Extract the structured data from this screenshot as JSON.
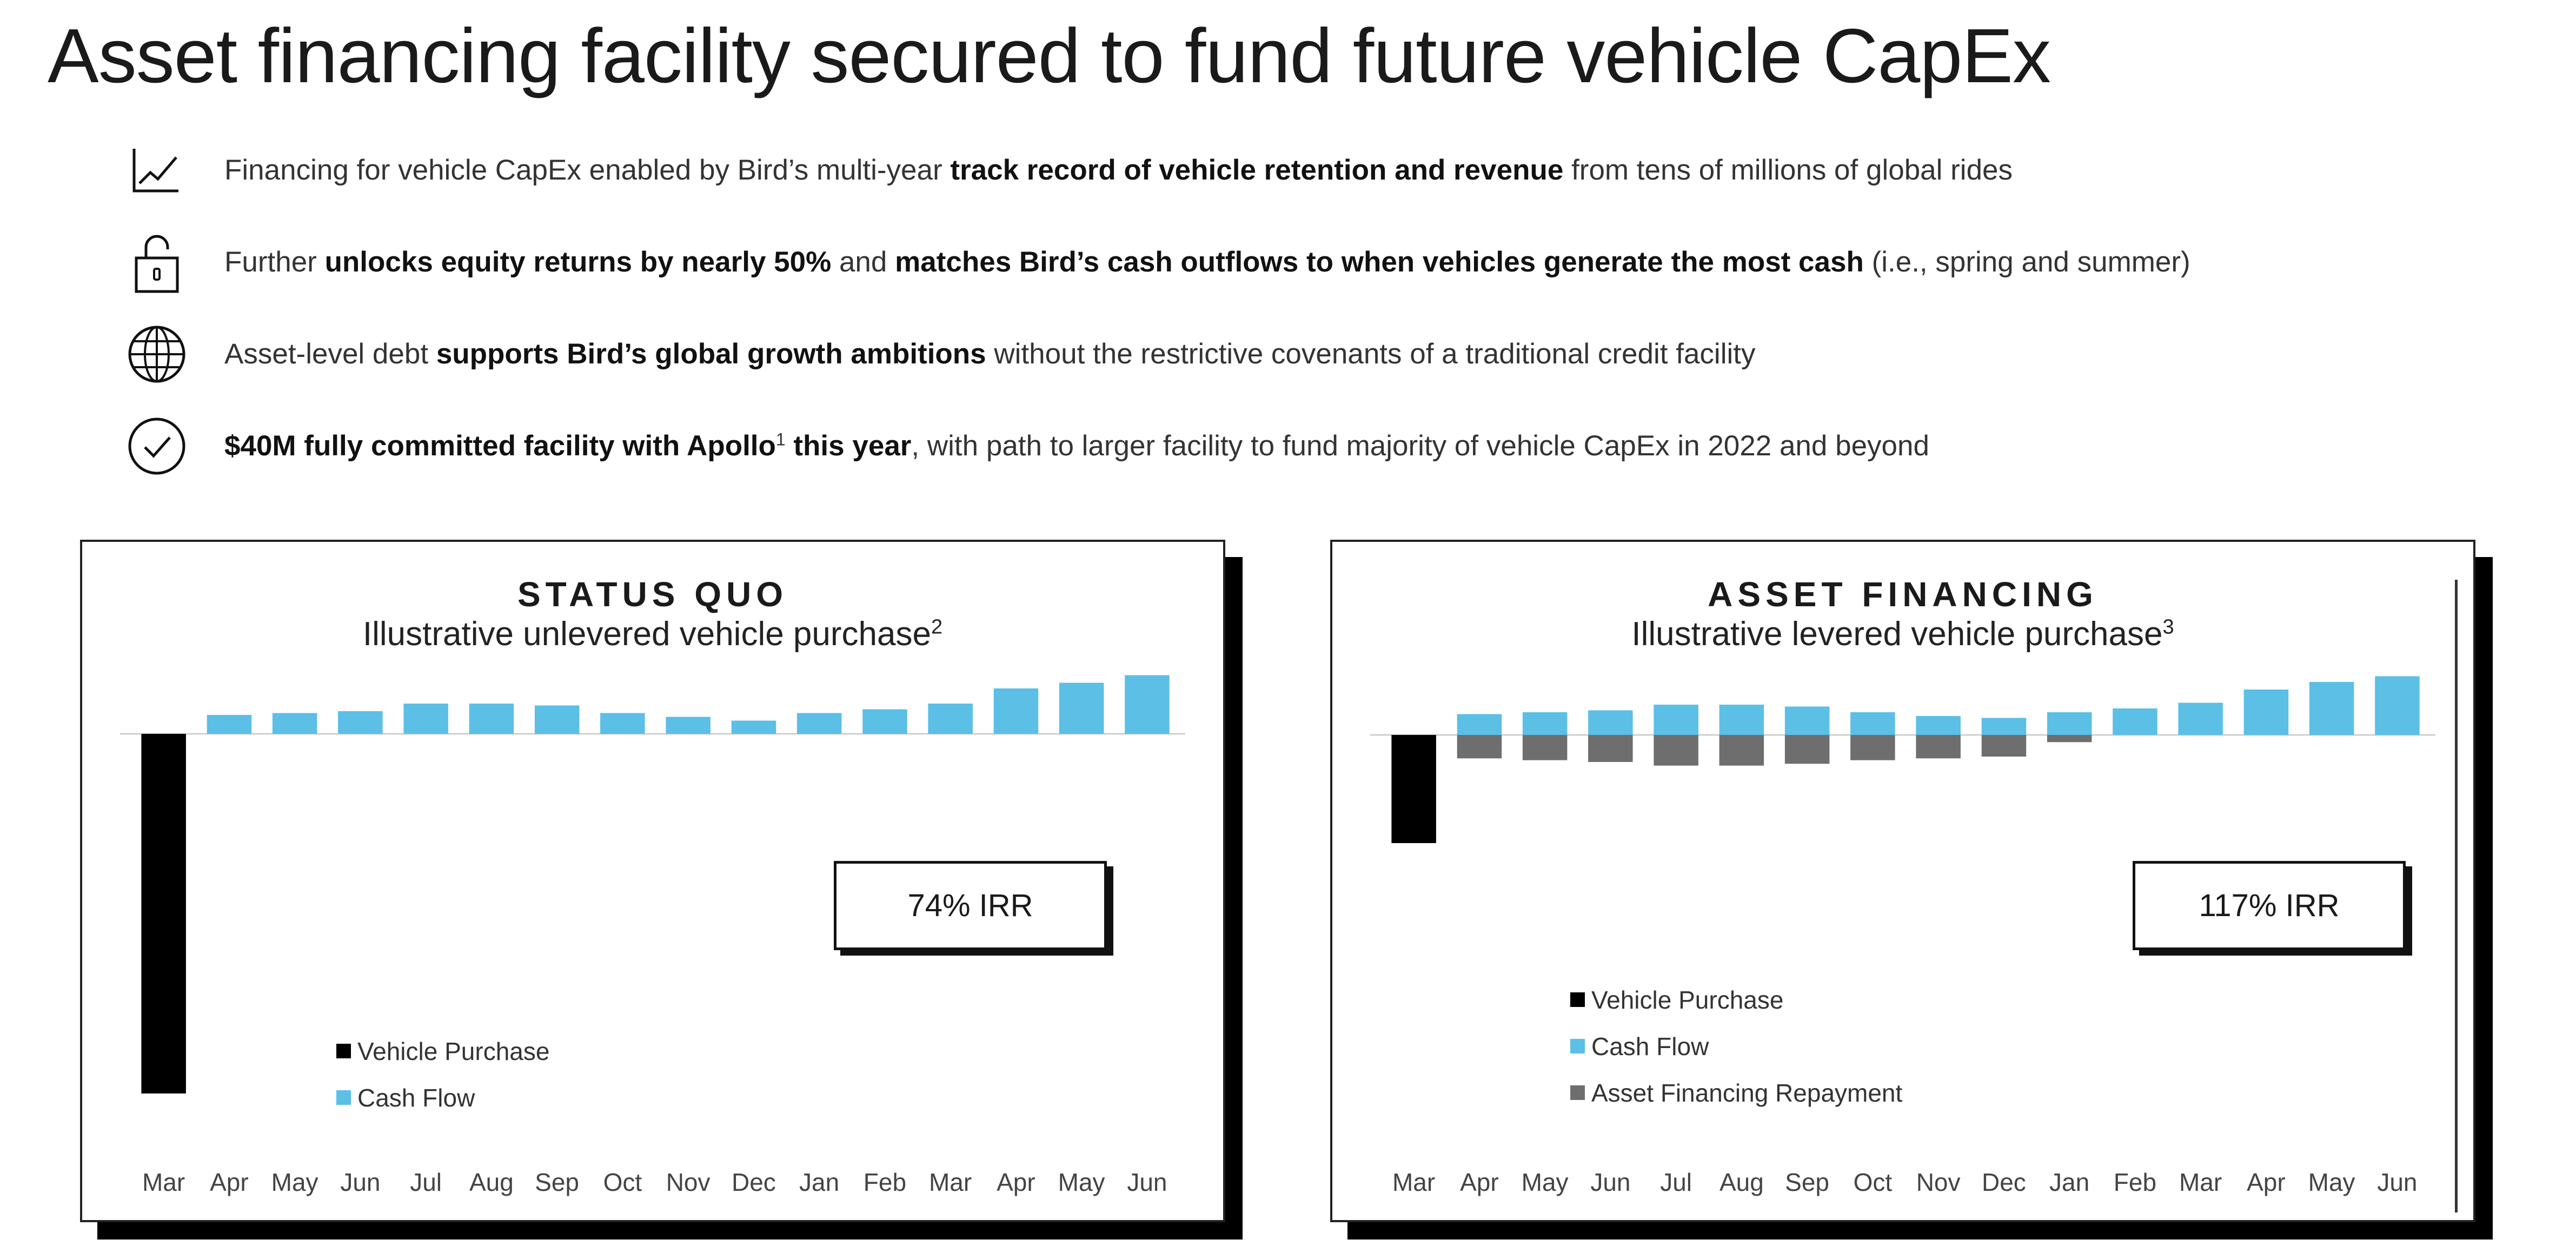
{
  "title": "Asset financing facility secured to fund future vehicle CapEx",
  "bullets": [
    {
      "icon": "line-chart-icon",
      "parts": [
        {
          "t": "Financing for vehicle CapEx enabled by Bird’s multi-year ",
          "b": false
        },
        {
          "t": "track record of vehicle retention and revenue",
          "b": true
        },
        {
          "t": " from tens of millions of global rides",
          "b": false
        }
      ]
    },
    {
      "icon": "unlocked-padlock-icon",
      "parts": [
        {
          "t": "Further ",
          "b": false
        },
        {
          "t": "unlocks equity returns by nearly 50%",
          "b": true
        },
        {
          "t": " and ",
          "b": false
        },
        {
          "t": "matches Bird’s cash outflows to when vehicles generate the most cash",
          "b": true
        },
        {
          "t": " (i.e., spring and summer)",
          "b": false
        }
      ]
    },
    {
      "icon": "globe-icon",
      "parts": [
        {
          "t": "Asset-level debt ",
          "b": false
        },
        {
          "t": "supports Bird’s global growth ambitions",
          "b": true
        },
        {
          "t": " without the restrictive covenants of a traditional credit facility",
          "b": false
        }
      ]
    },
    {
      "icon": "check-circle-icon",
      "parts": [
        {
          "t": "$40M fully committed facility with Apollo",
          "b": true
        },
        {
          "t": "1",
          "b": true,
          "sup": true
        },
        {
          "t": " this year",
          "b": true
        },
        {
          "t": ", with path to larger facility to fund majority of vehicle CapEx in 2022 and beyond",
          "b": false
        }
      ]
    }
  ],
  "colors": {
    "purchase": "#000000",
    "cash_flow": "#5bbfe6",
    "repayment": "#6e6e6e",
    "axis": "#cfcfcf"
  },
  "chart_data": [
    {
      "type": "bar",
      "title": "STATUS QUO",
      "subtitle": "Illustrative unlevered vehicle purchase",
      "subtitle_sup": "2",
      "irr": "74% IRR",
      "categories": [
        "Mar",
        "Apr",
        "May",
        "Jun",
        "Jul",
        "Aug",
        "Sep",
        "Oct",
        "Nov",
        "Dec",
        "Jan",
        "Feb",
        "Mar",
        "Apr",
        "May",
        "Jun"
      ],
      "ylim": [
        -100,
        15
      ],
      "series": [
        {
          "name": "Vehicle Purchase",
          "color": "#000000",
          "values": [
            -100,
            0,
            0,
            0,
            0,
            0,
            0,
            0,
            0,
            0,
            0,
            0,
            0,
            0,
            0,
            0
          ]
        },
        {
          "name": "Cash Flow",
          "color": "#5bbfe6",
          "values": [
            0,
            5,
            5.5,
            6,
            8,
            8,
            7.5,
            5.5,
            4.5,
            3.5,
            5.5,
            6.5,
            8,
            12,
            13.5,
            15.5
          ]
        }
      ],
      "legend": [
        "Vehicle Purchase",
        "Cash Flow"
      ]
    },
    {
      "type": "bar",
      "title": "ASSET FINANCING",
      "subtitle": "Illustrative levered vehicle purchase",
      "subtitle_sup": "3",
      "irr": "117% IRR",
      "categories": [
        "Mar",
        "Apr",
        "May",
        "Jun",
        "Jul",
        "Aug",
        "Sep",
        "Oct",
        "Nov",
        "Dec",
        "Jan",
        "Feb",
        "Mar",
        "Apr",
        "May",
        "Jun"
      ],
      "ylim": [
        -30,
        15
      ],
      "series": [
        {
          "name": "Vehicle Purchase",
          "color": "#000000",
          "values": [
            -30,
            0,
            0,
            0,
            0,
            0,
            0,
            0,
            0,
            0,
            0,
            0,
            0,
            0,
            0,
            0
          ]
        },
        {
          "name": "Cash Flow",
          "color": "#5bbfe6",
          "values": [
            0,
            5.5,
            6,
            6.5,
            8,
            8,
            7.5,
            6,
            5,
            4.5,
            6,
            7,
            8.5,
            12,
            14,
            15.5
          ]
        },
        {
          "name": "Asset Financing Repayment",
          "color": "#6e6e6e",
          "values": [
            0,
            -6.5,
            -7,
            -7.5,
            -8.5,
            -8.5,
            -8,
            -7,
            -6.5,
            -6,
            -2,
            0,
            0,
            0,
            0,
            0
          ]
        }
      ],
      "legend": [
        "Vehicle Purchase",
        "Cash Flow",
        "Asset Financing Repayment"
      ]
    }
  ]
}
